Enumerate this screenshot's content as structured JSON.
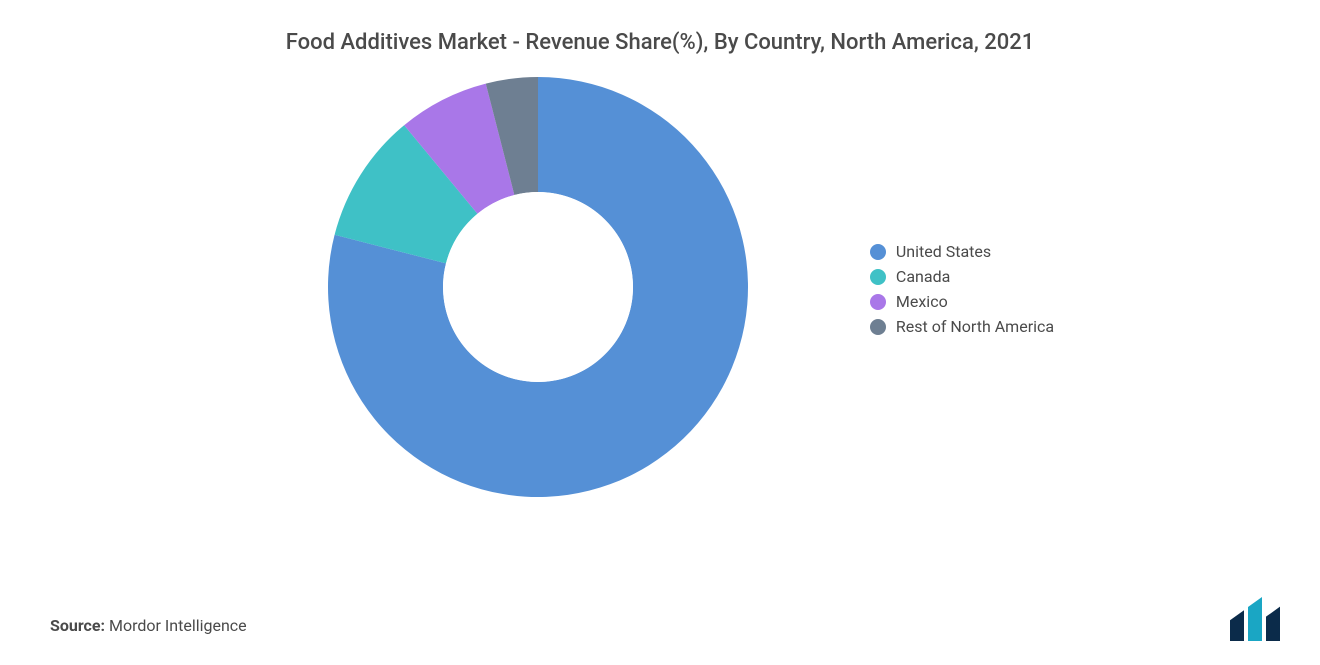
{
  "title": {
    "text": "Food Additives Market - Revenue Share(%), By Country, North America, 2021",
    "fontsize": 22,
    "color": "#4a4a4a"
  },
  "chart": {
    "type": "donut",
    "outer_radius": 210,
    "inner_radius": 95,
    "center_fill": "#ffffff",
    "background_color": "#ffffff",
    "slices": [
      {
        "label": "United States",
        "value": 79,
        "color": "#5590d6"
      },
      {
        "label": "Canada",
        "value": 10,
        "color": "#3fc1c6"
      },
      {
        "label": "Mexico",
        "value": 7,
        "color": "#a977e8"
      },
      {
        "label": "Rest of North America",
        "value": 4,
        "color": "#6e7f92"
      }
    ],
    "start_angle_deg": -90,
    "direction": "clockwise"
  },
  "legend": {
    "fontsize": 16,
    "label_color": "#4a4a4a",
    "items": [
      {
        "label": "United States",
        "color": "#5590d6"
      },
      {
        "label": "Canada",
        "color": "#3fc1c6"
      },
      {
        "label": "Mexico",
        "color": "#a977e8"
      },
      {
        "label": "Rest of North America",
        "color": "#6e7f92"
      }
    ]
  },
  "source": {
    "label": "Source:",
    "value": "Mordor Intelligence",
    "fontsize": 16,
    "color": "#4a4a4a"
  },
  "logo": {
    "bars": [
      "#0b2b4a",
      "#1aa6c4",
      "#0b2b4a"
    ],
    "width": 60,
    "height": 44
  }
}
